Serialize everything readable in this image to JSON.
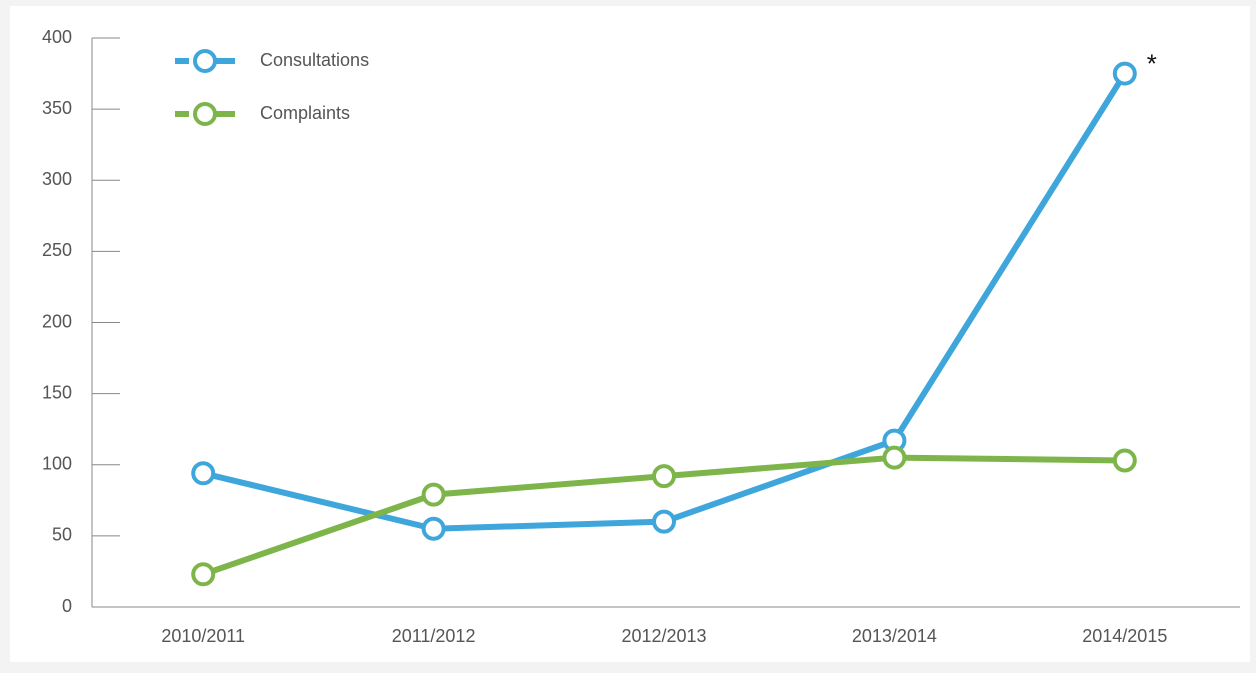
{
  "chart_data": {
    "type": "line",
    "categories": [
      "2010/2011",
      "2011/2012",
      "2012/2013",
      "2013/2014",
      "2014/2015"
    ],
    "series": [
      {
        "name": "Consultations",
        "color": "#3fa6dc",
        "values": [
          94,
          55,
          60,
          117,
          375
        ]
      },
      {
        "name": "Complaints",
        "color": "#7db54b",
        "values": [
          23,
          79,
          92,
          105,
          103
        ]
      }
    ],
    "ylim": [
      0,
      400
    ],
    "yticks": [
      0,
      50,
      100,
      150,
      200,
      250,
      300,
      350,
      400
    ],
    "annotation": "*",
    "legend": "upper left"
  }
}
